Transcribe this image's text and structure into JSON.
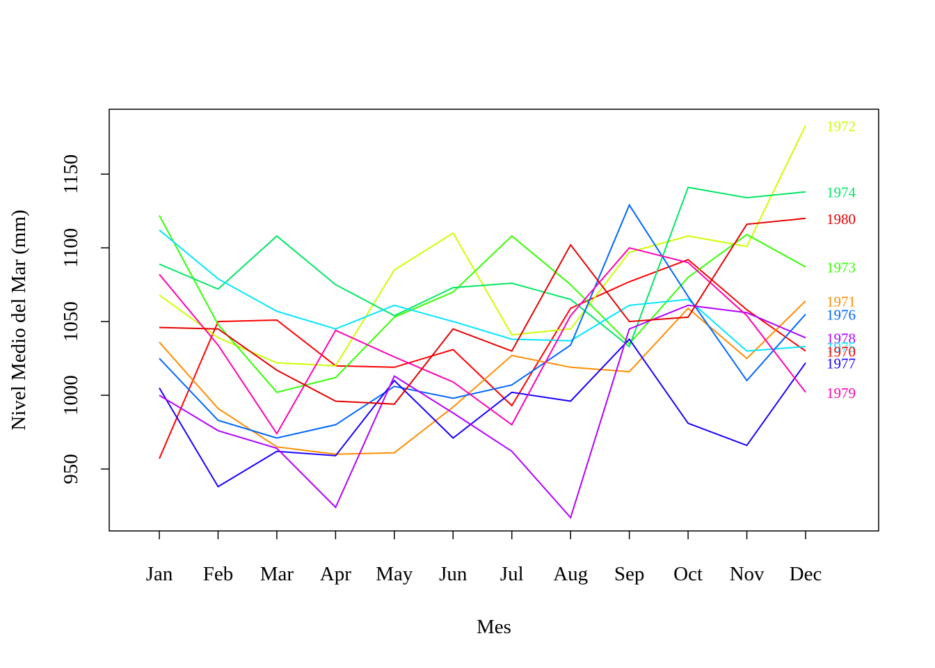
{
  "chart_data": {
    "type": "line",
    "title": "",
    "xlabel": "Mes",
    "ylabel": "Nivel Medio del Mar (mm)",
    "categories": [
      "Jan",
      "Feb",
      "Mar",
      "Apr",
      "May",
      "Jun",
      "Jul",
      "Aug",
      "Sep",
      "Oct",
      "Nov",
      "Dec"
    ],
    "yticks": [
      950,
      1000,
      1050,
      1100,
      1150
    ],
    "ylim": [
      908,
      1194
    ],
    "grid": false,
    "series": [
      {
        "name": "1970",
        "color": "#ff0000",
        "values": [
          957,
          1050,
          1051,
          1020,
          1019,
          1031,
          993,
          1059,
          1077,
          1092,
          1058,
          1030
        ]
      },
      {
        "name": "1971",
        "color": "#ff8c00",
        "values": [
          1036,
          991,
          965,
          960,
          961,
          992,
          1027,
          1019,
          1016,
          1059,
          1025,
          1064
        ]
      },
      {
        "name": "1972",
        "color": "#ccff00",
        "values": [
          1068,
          1039,
          1022,
          1020,
          1085,
          1110,
          1041,
          1045,
          1097,
          1108,
          1101,
          1183
        ]
      },
      {
        "name": "1973",
        "color": "#33ff00",
        "values": [
          1122,
          1048,
          1002,
          1012,
          1053,
          1070,
          1108,
          1075,
          1035,
          1080,
          1109,
          1087
        ]
      },
      {
        "name": "1974",
        "color": "#00e664",
        "values": [
          1089,
          1072,
          1108,
          1075,
          1054,
          1073,
          1076,
          1065,
          1033,
          1141,
          1134,
          1138
        ]
      },
      {
        "name": "1975",
        "color": "#00e5ff",
        "values": [
          1112,
          1079,
          1057,
          1045,
          1061,
          1050,
          1038,
          1037,
          1061,
          1065,
          1030,
          1033
        ]
      },
      {
        "name": "1976",
        "color": "#0066ff",
        "values": [
          1025,
          983,
          971,
          980,
          1006,
          998,
          1007,
          1034,
          1129,
          1067,
          1010,
          1055
        ]
      },
      {
        "name": "1977",
        "color": "#1a00ff",
        "values": [
          1005,
          938,
          962,
          959,
          1010,
          971,
          1002,
          996,
          1038,
          981,
          966,
          1022
        ]
      },
      {
        "name": "1978",
        "color": "#b200ff",
        "values": [
          1000,
          976,
          964,
          924,
          1013,
          988,
          962,
          917,
          1045,
          1061,
          1056,
          1039
        ]
      },
      {
        "name": "1979",
        "color": "#ff00b2",
        "values": [
          1082,
          1034,
          974,
          1044,
          1026,
          1009,
          980,
          1054,
          1100,
          1090,
          1054,
          1002
        ]
      },
      {
        "name": "1980",
        "color": "#e60000",
        "values": [
          1046,
          1045,
          1017,
          996,
          994,
          1045,
          1030,
          1102,
          1050,
          1053,
          1116,
          1120
        ]
      }
    ]
  }
}
